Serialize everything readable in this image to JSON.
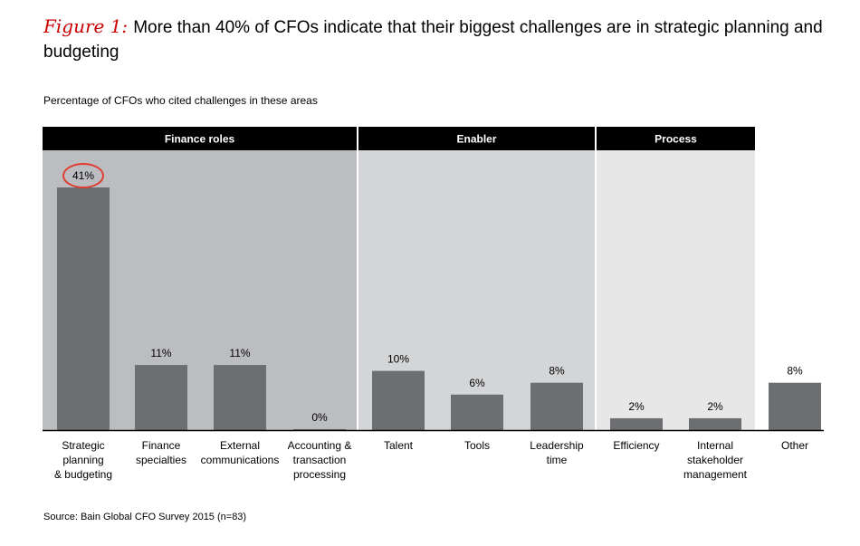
{
  "figure": {
    "label": "Figure 1:",
    "title": "More than 40% of CFOs indicate that their biggest challenges are in strategic planning and budgeting"
  },
  "subtitle": "Percentage of CFOs who cited challenges in these areas",
  "source": "Source: Bain Global CFO Survey 2015 (n=83)",
  "colors": {
    "bar": "#6d6e71",
    "group_header": "#000000",
    "finance_bg": "#bcbdc0",
    "enabler_bg": "#d4d5d7",
    "process_bg": "#e7e7e8",
    "highlight_circle": "#e03c31"
  },
  "chart_data": {
    "type": "bar",
    "groups": [
      {
        "name": "Finance roles",
        "categories": [
          0,
          1,
          2,
          3
        ]
      },
      {
        "name": "Enabler",
        "categories": [
          4,
          5,
          6
        ]
      },
      {
        "name": "Process",
        "categories": [
          7,
          8
        ]
      }
    ],
    "categories": [
      [
        "Strategic",
        "planning",
        "& budgeting"
      ],
      [
        "Finance",
        "specialties"
      ],
      [
        "External",
        "communications"
      ],
      [
        "Accounting &",
        "transaction",
        "processing"
      ],
      [
        "Talent"
      ],
      [
        "Tools"
      ],
      [
        "Leadership",
        "time"
      ],
      [
        "Efficiency"
      ],
      [
        "Internal",
        "stakeholder",
        "management"
      ],
      [
        "Other"
      ]
    ],
    "values": [
      41,
      11,
      11,
      0,
      10,
      6,
      8,
      2,
      2,
      8
    ],
    "value_labels": [
      "41%",
      "11%",
      "11%",
      "0%",
      "10%",
      "6%",
      "8%",
      "2%",
      "2%",
      "8%"
    ],
    "highlighted_index": 0,
    "ylim": [
      0,
      41
    ],
    "xlabel": "",
    "ylabel": ""
  }
}
